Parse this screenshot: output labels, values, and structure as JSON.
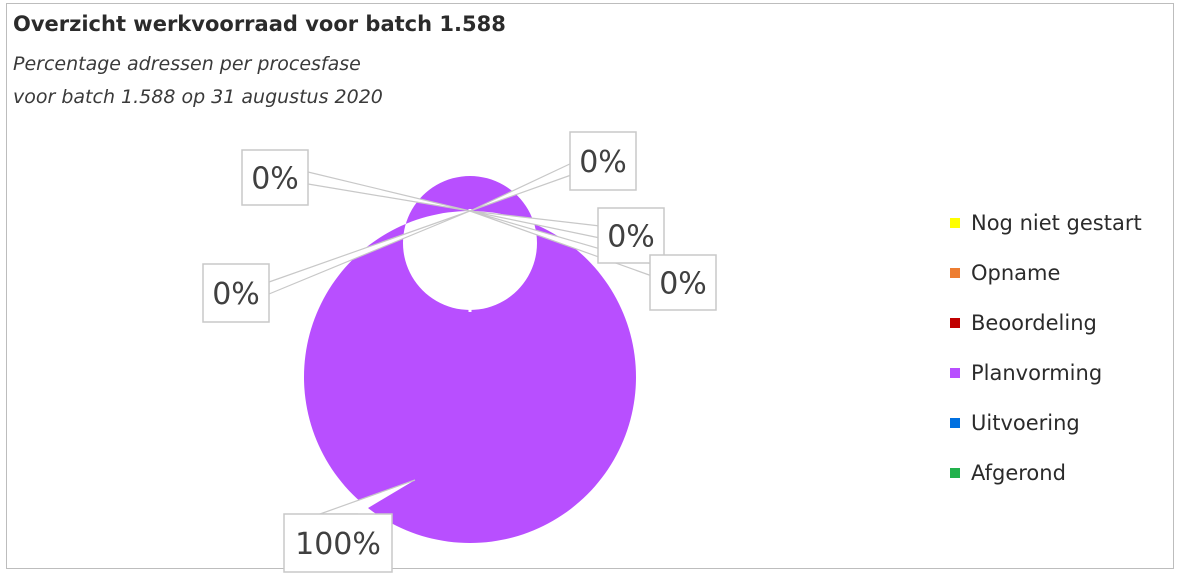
{
  "chart_data": {
    "type": "pie",
    "variant": "donut",
    "title": "Overzicht werkvoorraad voor batch 1.588",
    "subtitle_lines": [
      "Percentage adressen per procesfase",
      "voor batch 1.588 op 31 augustus 2020"
    ],
    "categories": [
      "Nog niet gestart",
      "Opname",
      "Beoordeling",
      "Planvorming",
      "Uitvoering",
      "Afgerond"
    ],
    "values": [
      0,
      0,
      0,
      100,
      0,
      0
    ],
    "data_labels": [
      {
        "category": "Nog niet gestart",
        "text": "0%"
      },
      {
        "category": "Opname",
        "text": "0%"
      },
      {
        "category": "Beoordeling",
        "text": "0%"
      },
      {
        "category": "Planvorming",
        "text": "100%"
      },
      {
        "category": "Uitvoering",
        "text": "0%"
      },
      {
        "category": "Afgerond",
        "text": "0%"
      }
    ],
    "colors": [
      "#ffff00",
      "#ed7d31",
      "#c00000",
      "#b84fff",
      "#0070e0",
      "#22b14c"
    ],
    "legend_position": "right"
  }
}
